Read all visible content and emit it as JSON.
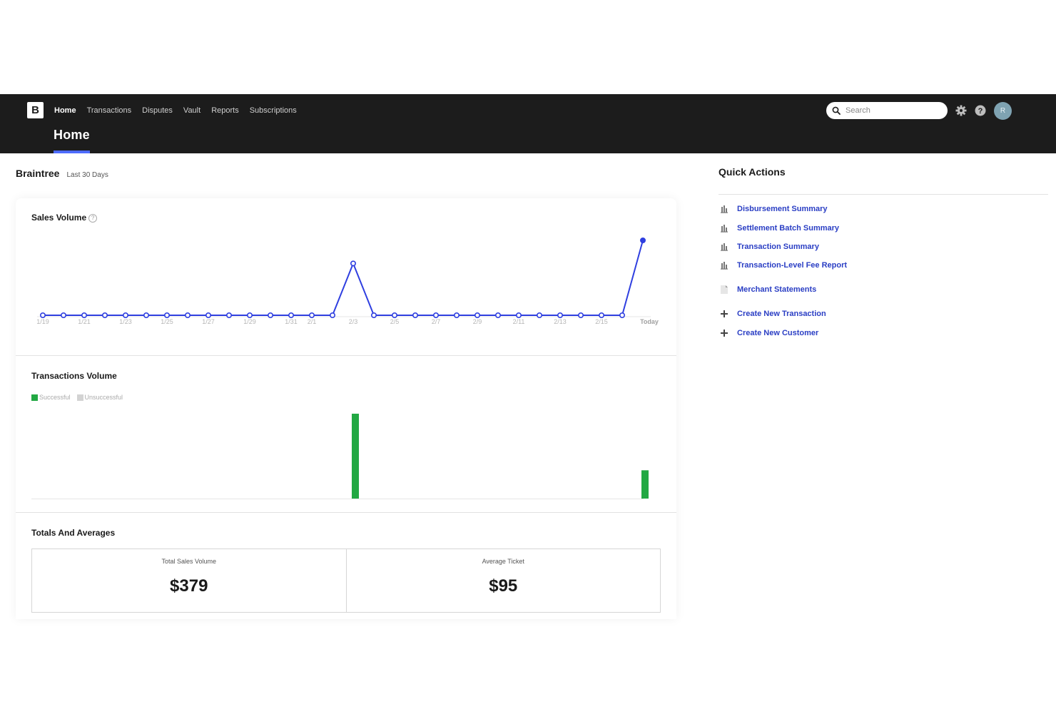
{
  "brand": {
    "logo_letter": "B"
  },
  "nav": {
    "items": [
      {
        "label": "Home",
        "active": true
      },
      {
        "label": "Transactions",
        "active": false
      },
      {
        "label": "Disputes",
        "active": false
      },
      {
        "label": "Vault",
        "active": false
      },
      {
        "label": "Reports",
        "active": false
      },
      {
        "label": "Subscriptions",
        "active": false
      }
    ],
    "page_title": "Home",
    "search_placeholder": "Search",
    "avatar_initial": "R",
    "accent_color": "#4d6bfe"
  },
  "header": {
    "merchant": "Braintree",
    "range": "Last 30 Days"
  },
  "sales_volume": {
    "title": "Sales Volume",
    "help_glyph": "?"
  },
  "transactions_volume": {
    "title": "Transactions Volume",
    "legend": [
      {
        "label": "Successful",
        "color": "#22a843"
      },
      {
        "label": "Unsuccessful",
        "color": "#d3d3d3"
      }
    ]
  },
  "totals": {
    "title": "Totals And Averages",
    "cells": [
      {
        "label": "Total Sales Volume",
        "value": "$379"
      },
      {
        "label": "Average Ticket",
        "value": "$95"
      }
    ]
  },
  "quick_actions": {
    "title": "Quick Actions",
    "items": [
      {
        "label": "Disbursement Summary",
        "icon": "report-icon"
      },
      {
        "label": "Settlement Batch Summary",
        "icon": "report-icon"
      },
      {
        "label": "Transaction Summary",
        "icon": "report-icon"
      },
      {
        "label": "Transaction-Level Fee Report",
        "icon": "report-icon"
      },
      {
        "label": "Merchant Statements",
        "icon": "document-icon"
      },
      {
        "label": "Create New Transaction",
        "icon": "plus-icon"
      },
      {
        "label": "Create New Customer",
        "icon": "plus-icon"
      }
    ]
  },
  "chart_data": [
    {
      "type": "line",
      "title": "Sales Volume",
      "color": "#2f3fe0",
      "x_tick_labels": [
        "1/19",
        "1/21",
        "1/23",
        "1/25",
        "1/27",
        "1/29",
        "1/31",
        "2/1",
        "2/3",
        "2/5",
        "2/7",
        "2/9",
        "2/11",
        "2/13",
        "2/15",
        "Today"
      ],
      "values": [
        0,
        0,
        0,
        0,
        0,
        0,
        0,
        0,
        0,
        0,
        0,
        0,
        0,
        0,
        0,
        155,
        0,
        0,
        0,
        0,
        0,
        0,
        0,
        0,
        0,
        0,
        0,
        0,
        0,
        224
      ],
      "ylim": [
        0,
        224
      ]
    },
    {
      "type": "bar",
      "title": "Transactions Volume",
      "series": [
        {
          "name": "Successful",
          "color": "#22a843",
          "values": [
            0,
            0,
            0,
            0,
            0,
            0,
            0,
            0,
            0,
            0,
            0,
            0,
            0,
            0,
            0,
            3,
            0,
            0,
            0,
            0,
            0,
            0,
            0,
            0,
            0,
            0,
            0,
            0,
            0,
            1
          ]
        },
        {
          "name": "Unsuccessful",
          "color": "#d3d3d3",
          "values": [
            0,
            0,
            0,
            0,
            0,
            0,
            0,
            0,
            0,
            0,
            0,
            0,
            0,
            0,
            0,
            0,
            0,
            0,
            0,
            0,
            0,
            0,
            0,
            0,
            0,
            0,
            0,
            0,
            0,
            0
          ]
        }
      ],
      "ylim": [
        0,
        3
      ]
    }
  ]
}
